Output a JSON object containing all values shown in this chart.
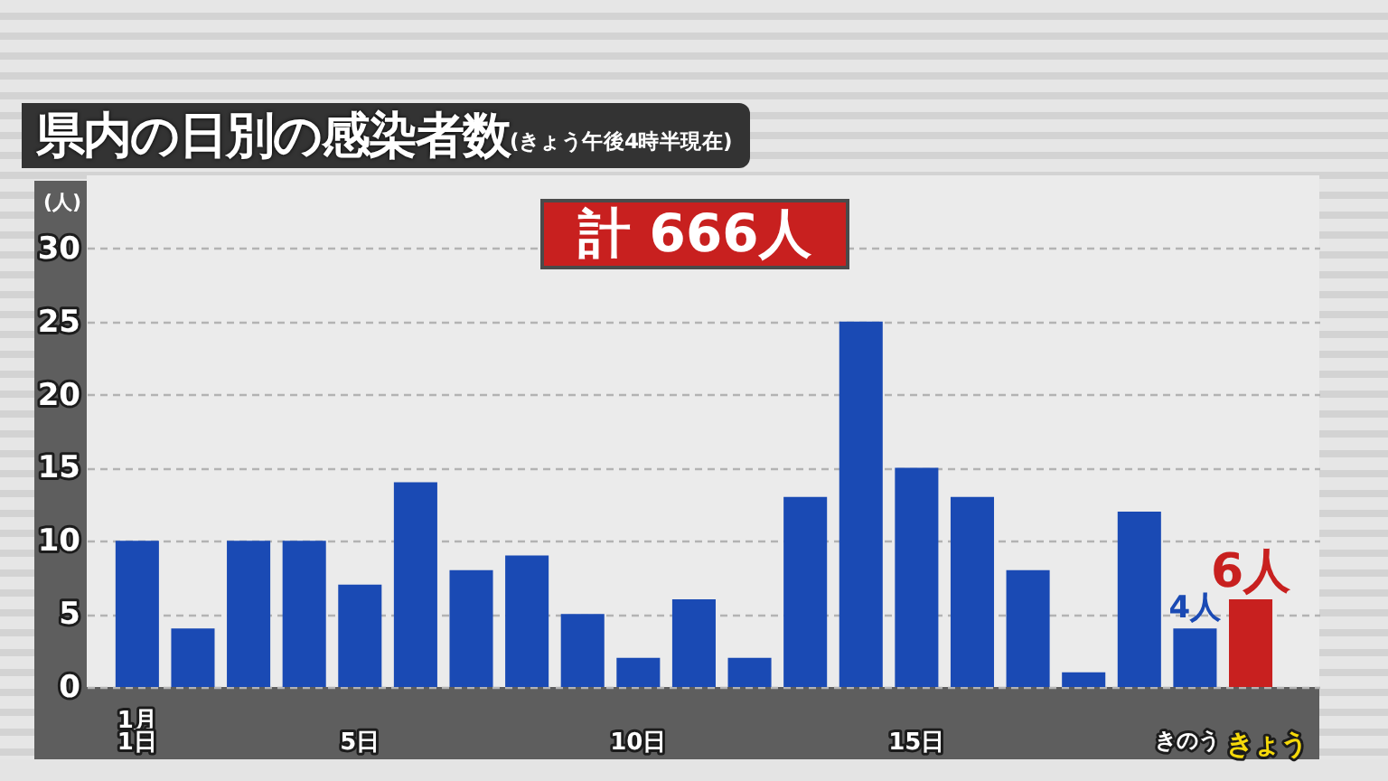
{
  "chart_data": {
    "type": "bar",
    "title": "県内の日別の感染者数",
    "subtitle": "(きょう午後4時半現在)",
    "ylabel": "(人)",
    "categories": [
      "1月\n1日",
      null,
      null,
      null,
      "5日",
      null,
      null,
      null,
      null,
      "10日",
      null,
      null,
      null,
      null,
      "15日",
      null,
      null,
      null,
      null,
      "きのう",
      "きょう"
    ],
    "values": [
      10,
      4,
      10,
      10,
      7,
      14,
      8,
      9,
      5,
      2,
      6,
      2,
      13,
      25,
      15,
      13,
      8,
      1,
      12,
      4,
      6
    ],
    "colors": [
      "#1a4ab4",
      "#1a4ab4",
      "#1a4ab4",
      "#1a4ab4",
      "#1a4ab4",
      "#1a4ab4",
      "#1a4ab4",
      "#1a4ab4",
      "#1a4ab4",
      "#1a4ab4",
      "#1a4ab4",
      "#1a4ab4",
      "#1a4ab4",
      "#1a4ab4",
      "#1a4ab4",
      "#1a4ab4",
      "#1a4ab4",
      "#1a4ab4",
      "#1a4ab4",
      "#1a4ab4",
      "#c8201f"
    ],
    "value_labels": [
      null,
      null,
      null,
      null,
      null,
      null,
      null,
      null,
      null,
      null,
      null,
      null,
      null,
      null,
      null,
      null,
      null,
      null,
      null,
      "4人",
      "6人"
    ],
    "annotations": [
      "計 666人"
    ],
    "ylim": [
      0,
      35
    ],
    "yticks": [
      0,
      5,
      10,
      15,
      20,
      25,
      30
    ],
    "grid": "y"
  }
}
